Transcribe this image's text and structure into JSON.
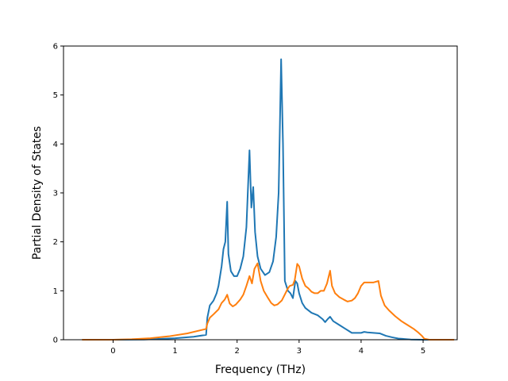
{
  "chart_data": {
    "type": "line",
    "title": "",
    "xlabel": "Frequency (THz)",
    "ylabel": "Partial Density of States",
    "xlim": [
      -0.8,
      5.55
    ],
    "ylim": [
      0,
      6
    ],
    "xticks": [
      0,
      1,
      2,
      3,
      4,
      5
    ],
    "yticks": [
      0,
      1,
      2,
      3,
      4,
      5,
      6
    ],
    "grid": false,
    "series": [
      {
        "color": "#1f77b4",
        "points": [
          [
            -0.5,
            0
          ],
          [
            0.0,
            0.0
          ],
          [
            0.5,
            0.005
          ],
          [
            1.0,
            0.03
          ],
          [
            1.3,
            0.06
          ],
          [
            1.5,
            0.1
          ],
          [
            1.52,
            0.45
          ],
          [
            1.56,
            0.7
          ],
          [
            1.62,
            0.8
          ],
          [
            1.67,
            0.95
          ],
          [
            1.7,
            1.1
          ],
          [
            1.75,
            1.5
          ],
          [
            1.78,
            1.85
          ],
          [
            1.81,
            2.0
          ],
          [
            1.84,
            2.82
          ],
          [
            1.86,
            1.75
          ],
          [
            1.9,
            1.4
          ],
          [
            1.95,
            1.3
          ],
          [
            2.0,
            1.3
          ],
          [
            2.05,
            1.45
          ],
          [
            2.1,
            1.7
          ],
          [
            2.15,
            2.3
          ],
          [
            2.2,
            3.87
          ],
          [
            2.23,
            2.7
          ],
          [
            2.26,
            3.12
          ],
          [
            2.29,
            2.2
          ],
          [
            2.33,
            1.7
          ],
          [
            2.38,
            1.45
          ],
          [
            2.45,
            1.32
          ],
          [
            2.52,
            1.38
          ],
          [
            2.58,
            1.6
          ],
          [
            2.63,
            2.1
          ],
          [
            2.67,
            3.0
          ],
          [
            2.71,
            5.73
          ],
          [
            2.74,
            4.0
          ],
          [
            2.77,
            1.2
          ],
          [
            2.82,
            1.0
          ],
          [
            2.86,
            0.95
          ],
          [
            2.9,
            0.85
          ],
          [
            2.94,
            1.2
          ],
          [
            2.97,
            1.15
          ],
          [
            3.0,
            0.95
          ],
          [
            3.05,
            0.75
          ],
          [
            3.1,
            0.65
          ],
          [
            3.2,
            0.55
          ],
          [
            3.3,
            0.5
          ],
          [
            3.38,
            0.42
          ],
          [
            3.42,
            0.36
          ],
          [
            3.46,
            0.42
          ],
          [
            3.5,
            0.47
          ],
          [
            3.55,
            0.38
          ],
          [
            3.65,
            0.3
          ],
          [
            3.75,
            0.22
          ],
          [
            3.8,
            0.18
          ],
          [
            3.85,
            0.14
          ],
          [
            4.0,
            0.14
          ],
          [
            4.05,
            0.16
          ],
          [
            4.1,
            0.15
          ],
          [
            4.2,
            0.14
          ],
          [
            4.3,
            0.13
          ],
          [
            4.4,
            0.08
          ],
          [
            4.5,
            0.05
          ],
          [
            4.6,
            0.025
          ],
          [
            4.8,
            0.005
          ],
          [
            5.0,
            0
          ],
          [
            5.5,
            0
          ]
        ]
      },
      {
        "color": "#ff7f0e",
        "points": [
          [
            -0.5,
            0
          ],
          [
            0.0,
            0.0
          ],
          [
            0.3,
            0.01
          ],
          [
            0.6,
            0.03
          ],
          [
            0.9,
            0.07
          ],
          [
            1.2,
            0.13
          ],
          [
            1.5,
            0.22
          ],
          [
            1.52,
            0.33
          ],
          [
            1.56,
            0.45
          ],
          [
            1.62,
            0.52
          ],
          [
            1.7,
            0.62
          ],
          [
            1.75,
            0.75
          ],
          [
            1.8,
            0.82
          ],
          [
            1.84,
            0.92
          ],
          [
            1.88,
            0.74
          ],
          [
            1.93,
            0.68
          ],
          [
            1.98,
            0.72
          ],
          [
            2.05,
            0.82
          ],
          [
            2.1,
            0.92
          ],
          [
            2.15,
            1.1
          ],
          [
            2.2,
            1.3
          ],
          [
            2.24,
            1.15
          ],
          [
            2.28,
            1.45
          ],
          [
            2.33,
            1.56
          ],
          [
            2.38,
            1.2
          ],
          [
            2.43,
            1.0
          ],
          [
            2.5,
            0.85
          ],
          [
            2.55,
            0.75
          ],
          [
            2.6,
            0.7
          ],
          [
            2.65,
            0.72
          ],
          [
            2.72,
            0.8
          ],
          [
            2.78,
            0.95
          ],
          [
            2.82,
            1.05
          ],
          [
            2.85,
            1.1
          ],
          [
            2.9,
            1.12
          ],
          [
            2.93,
            1.22
          ],
          [
            2.97,
            1.55
          ],
          [
            3.0,
            1.5
          ],
          [
            3.05,
            1.25
          ],
          [
            3.1,
            1.1
          ],
          [
            3.15,
            1.05
          ],
          [
            3.2,
            0.98
          ],
          [
            3.25,
            0.95
          ],
          [
            3.3,
            0.95
          ],
          [
            3.35,
            1.0
          ],
          [
            3.4,
            1.0
          ],
          [
            3.45,
            1.15
          ],
          [
            3.5,
            1.41
          ],
          [
            3.53,
            1.1
          ],
          [
            3.58,
            0.95
          ],
          [
            3.65,
            0.87
          ],
          [
            3.72,
            0.82
          ],
          [
            3.78,
            0.78
          ],
          [
            3.85,
            0.8
          ],
          [
            3.9,
            0.85
          ],
          [
            3.95,
            0.95
          ],
          [
            4.0,
            1.1
          ],
          [
            4.05,
            1.17
          ],
          [
            4.1,
            1.17
          ],
          [
            4.2,
            1.17
          ],
          [
            4.28,
            1.2
          ],
          [
            4.32,
            0.9
          ],
          [
            4.38,
            0.7
          ],
          [
            4.45,
            0.6
          ],
          [
            4.55,
            0.48
          ],
          [
            4.65,
            0.38
          ],
          [
            4.75,
            0.3
          ],
          [
            4.85,
            0.22
          ],
          [
            4.92,
            0.15
          ],
          [
            4.98,
            0.08
          ],
          [
            5.02,
            0.02
          ],
          [
            5.1,
            0
          ],
          [
            5.5,
            0
          ]
        ]
      }
    ]
  }
}
